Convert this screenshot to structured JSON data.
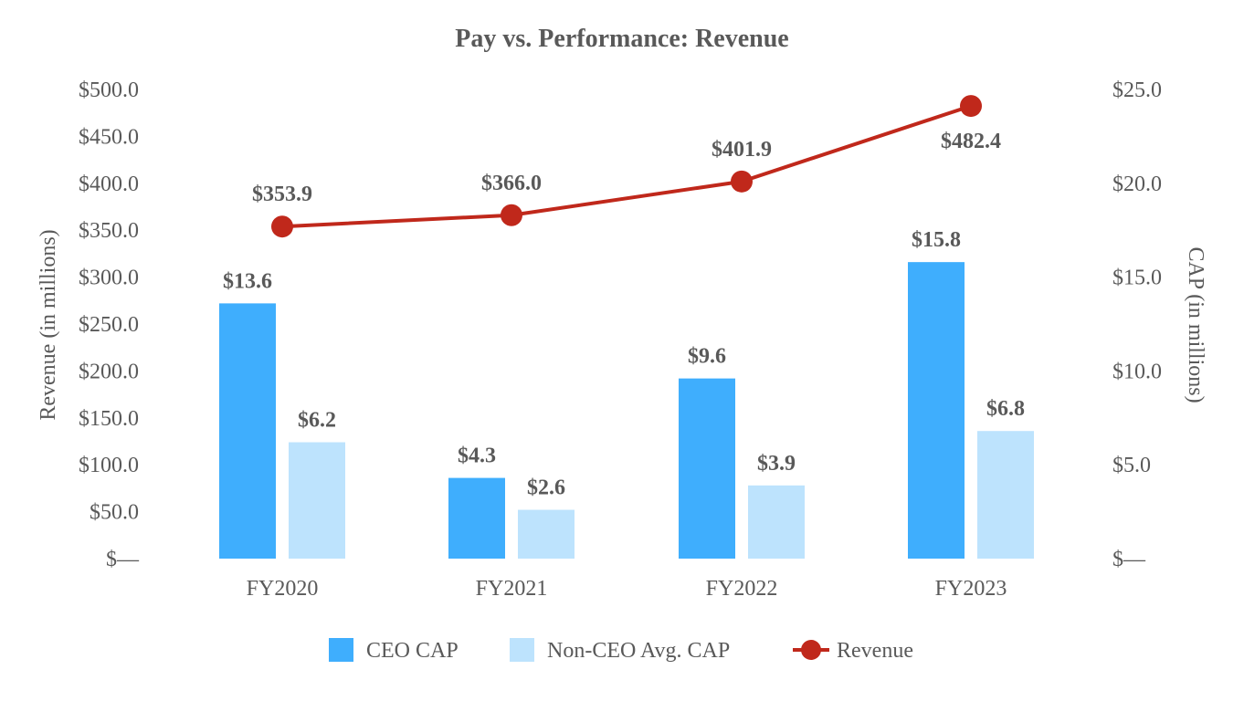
{
  "chart_data": {
    "type": "bar+line",
    "title": "Pay vs. Performance: Revenue",
    "categories": [
      "FY2020",
      "FY2021",
      "FY2022",
      "FY2023"
    ],
    "y_left": {
      "label": "Revenue (in millions)",
      "min": 0,
      "max": 500,
      "step": 50,
      "tick_labels": [
        "$—",
        "$50.0",
        "$100.0",
        "$150.0",
        "$200.0",
        "$250.0",
        "$300.0",
        "$350.0",
        "$400.0",
        "$450.0",
        "$500.0"
      ]
    },
    "y_right": {
      "label": "CAP (in millions)",
      "min": 0,
      "max": 25,
      "step": 5,
      "tick_labels": [
        "$—",
        "$5.0",
        "$10.0",
        "$15.0",
        "$20.0",
        "$25.0"
      ]
    },
    "series": [
      {
        "name": "CEO CAP",
        "type": "bar",
        "axis": "right",
        "color": "#3FAEFD",
        "values": [
          13.6,
          4.3,
          9.6,
          15.8
        ],
        "labels": [
          "$13.6",
          "$4.3",
          "$9.6",
          "$15.8"
        ]
      },
      {
        "name": "Non-CEO Avg. CAP",
        "type": "bar",
        "axis": "right",
        "color": "#BDE3FD",
        "values": [
          6.2,
          2.6,
          3.9,
          6.8
        ],
        "labels": [
          "$6.2",
          "$2.6",
          "$3.9",
          "$6.8"
        ]
      },
      {
        "name": "Revenue",
        "type": "line",
        "axis": "left",
        "color": "#C0281B",
        "values": [
          353.9,
          366.0,
          401.9,
          482.4
        ],
        "labels": [
          "$353.9",
          "$366.0",
          "$401.9",
          "$482.4"
        ]
      }
    ],
    "legend": {
      "position": "bottom-center",
      "entries": [
        "CEO CAP",
        "Non-CEO Avg. CAP",
        "Revenue"
      ]
    },
    "grid": false
  }
}
